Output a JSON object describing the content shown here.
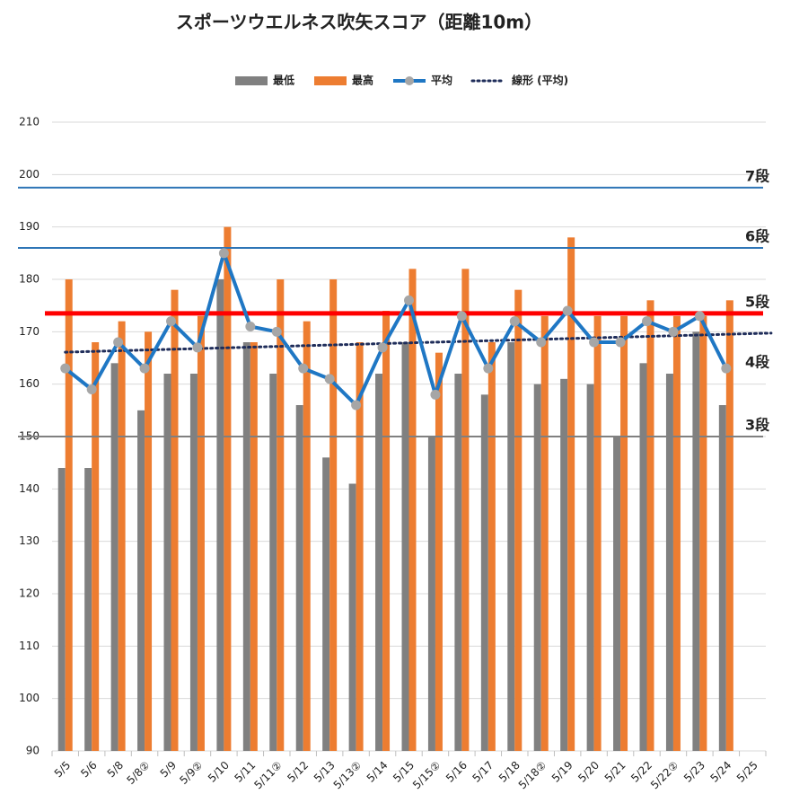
{
  "chart_data": {
    "type": "bar",
    "title": "スポーツウエルネス吹矢スコア（距離10m）",
    "categories": [
      "5/5",
      "5/6",
      "5/8",
      "5/8②",
      "5/9",
      "5/9②",
      "5/10",
      "5/11",
      "5/11②",
      "5/12",
      "5/13",
      "5/13②",
      "5/14",
      "5/15",
      "5/15②",
      "5/16",
      "5/17",
      "5/18",
      "5/18②",
      "5/19",
      "5/20",
      "5/21",
      "5/22",
      "5/22②",
      "5/23",
      "5/24",
      "5/25"
    ],
    "series": [
      {
        "name": "最低",
        "color": "#808080",
        "kind": "bar",
        "values": [
          144,
          144,
          164,
          155,
          162,
          162,
          180,
          168,
          162,
          156,
          146,
          141,
          162,
          168,
          150,
          162,
          158,
          168,
          160,
          161,
          160,
          150,
          164,
          162,
          170,
          156,
          null
        ]
      },
      {
        "name": "最高",
        "color": "#ed7d31",
        "kind": "bar",
        "values": [
          180,
          168,
          172,
          170,
          178,
          173,
          190,
          168,
          180,
          172,
          180,
          168,
          174,
          182,
          166,
          182,
          168,
          178,
          173,
          188,
          173,
          173,
          176,
          173,
          173,
          176,
          null
        ]
      },
      {
        "name": "平均",
        "color": "#1f77c4",
        "marker_color": "#a6a6a6",
        "kind": "line",
        "values": [
          163,
          159,
          168,
          163,
          172,
          167,
          185,
          171,
          170,
          163,
          161,
          156,
          167,
          176,
          158,
          173,
          163,
          172,
          168,
          174,
          168,
          168,
          172,
          170,
          173,
          163,
          null
        ]
      }
    ],
    "trendline": {
      "name": "線形 (平均)",
      "color": "#1f2d5a"
    },
    "levels": [
      {
        "label": "7段",
        "value": 197.5,
        "color": "#2e75b6",
        "label_color": "#111111"
      },
      {
        "label": "6段",
        "value": 186,
        "color": "#2e75b6",
        "label_color": "#111111"
      },
      {
        "label": "5段",
        "value": 173.5,
        "color": "#ff0000",
        "label_color": "#2e75b6"
      },
      {
        "label": "4段",
        "value": 162,
        "color": null,
        "label_color": "#111111"
      },
      {
        "label": "3段",
        "value": 150,
        "color": "#808080",
        "label_color": "#111111"
      }
    ],
    "ylim": [
      90,
      210
    ],
    "yticks": [
      90,
      100,
      110,
      120,
      130,
      140,
      150,
      160,
      170,
      180,
      190,
      200,
      210
    ],
    "grid": true
  }
}
